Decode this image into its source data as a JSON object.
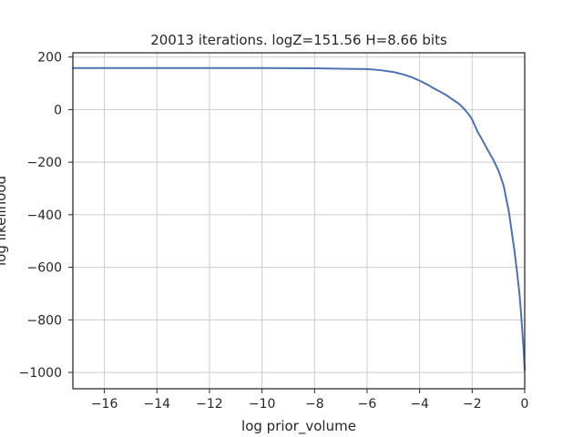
{
  "chart_data": {
    "type": "line",
    "title": "20013 iterations. logZ=151.56 H=8.66 bits",
    "xlabel": "log prior_volume",
    "ylabel": "log likelihood",
    "xlim": [
      -17.2,
      0
    ],
    "ylim": [
      -1062,
      216
    ],
    "xticks": [
      -16,
      -14,
      -12,
      -10,
      -8,
      -6,
      -4,
      -2,
      0
    ],
    "yticks": [
      -1000,
      -800,
      -600,
      -400,
      -200,
      0,
      200
    ],
    "grid": true,
    "line_color": "#4c72b0",
    "series": [
      {
        "x": [
          -17.2,
          -14,
          -10,
          -8,
          -6,
          -5.5,
          -5,
          -4.6,
          -4.3,
          -4,
          -3.7,
          -3.5,
          -3.2,
          -3,
          -2.8,
          -2.5,
          -2.3,
          -2.1,
          -2,
          -1.9,
          -1.8,
          -1.6,
          -1.4,
          -1.2,
          -1,
          -0.9,
          -0.8,
          -0.7,
          -0.6,
          -0.5,
          -0.4,
          -0.3,
          -0.2,
          -0.15,
          -0.1,
          -0.05,
          0
        ],
        "y": [
          158,
          158,
          158,
          157,
          154,
          150,
          143,
          133,
          123,
          110,
          95,
          83,
          67,
          56,
          42,
          22,
          2,
          -22,
          -38,
          -60,
          -83,
          -118,
          -155,
          -190,
          -232,
          -260,
          -290,
          -340,
          -390,
          -460,
          -530,
          -610,
          -700,
          -760,
          -830,
          -900,
          -990
        ]
      }
    ]
  }
}
